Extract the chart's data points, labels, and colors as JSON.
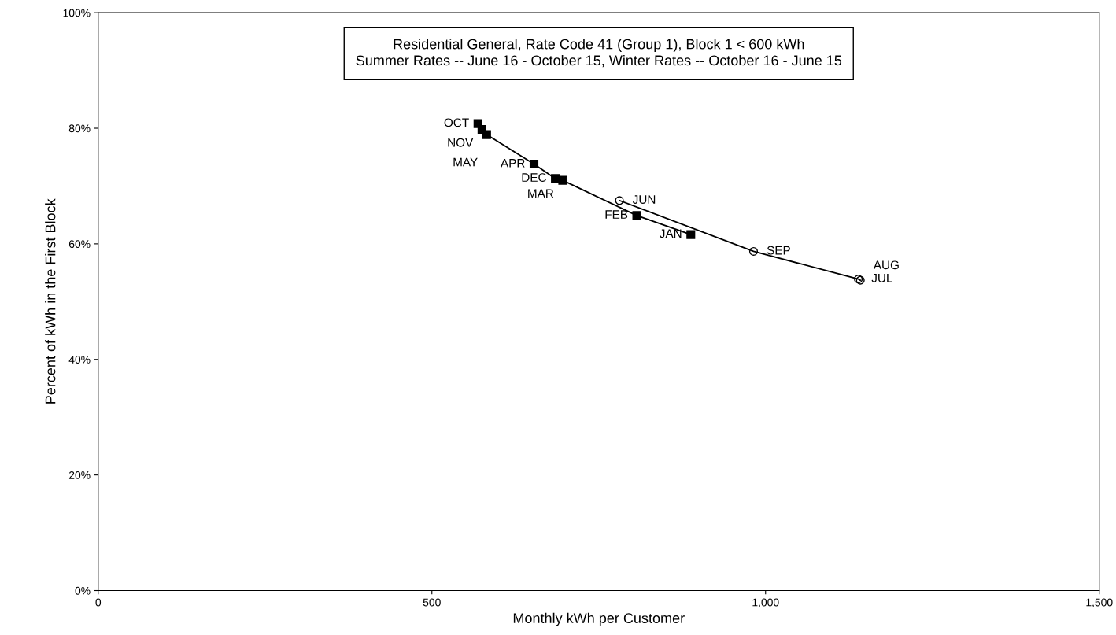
{
  "chart_data": {
    "type": "line",
    "title": "Residential General, Rate Code 41 (Group 1), Block 1 < 600 kWh\nSummer Rates -- June 16 - October 15, Winter Rates -- October 16 - June 15",
    "xlabel": "Monthly kWh per Customer",
    "ylabel": "Percent of kWh in the First Block",
    "xlim": [
      0,
      1500
    ],
    "xticks": [
      0,
      500,
      {
        "value": 1000,
        "label": "1,000"
      },
      {
        "value": 1500,
        "label": "1,500"
      }
    ],
    "ylim": [
      0,
      100
    ],
    "yticks": [
      {
        "value": 0,
        "label": "0%"
      },
      {
        "value": 20,
        "label": "20%"
      },
      {
        "value": 40,
        "label": "40%"
      },
      {
        "value": 60,
        "label": "60%"
      },
      {
        "value": 80,
        "label": "80%"
      },
      {
        "value": 100,
        "label": "100%"
      }
    ],
    "grid": false,
    "legend": false,
    "series": [
      {
        "color": "#000000",
        "marker": "square",
        "x": [
          569,
          575,
          582,
          653,
          685,
          696,
          807,
          888
        ],
        "values": [
          80.8,
          79.8,
          78.9,
          73.8,
          71.3,
          71.0,
          64.9,
          61.6
        ],
        "value_labels": [
          "OCT",
          "NOV",
          "MAY",
          "APR",
          "DEC",
          "MAR",
          "FEB",
          "JAN"
        ]
      },
      {
        "color": "#000000",
        "marker": "circle",
        "x": [
          781,
          982,
          1139,
          1142
        ],
        "values": [
          67.5,
          58.7,
          53.9,
          53.7
        ],
        "value_labels": [
          "JUN",
          "SEP",
          "JUL",
          "AUG"
        ]
      }
    ]
  }
}
